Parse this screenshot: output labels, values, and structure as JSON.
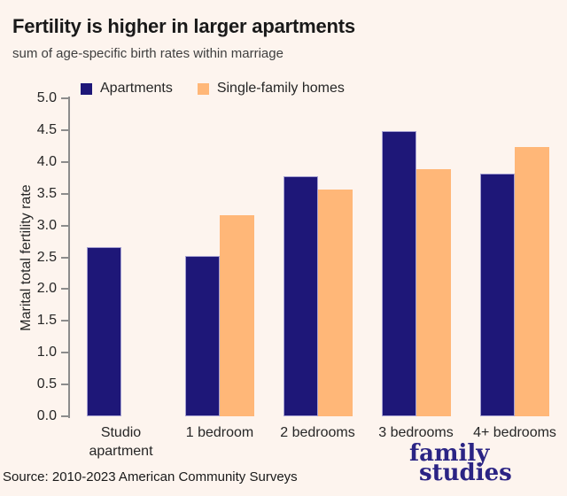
{
  "title": "Fertility is higher in larger apartments",
  "subtitle": "sum of age-specific birth rates within marriage",
  "source": "Source: 2010-2023 American Community Surveys",
  "logo": {
    "line1": "family",
    "line2": "studies"
  },
  "colors": {
    "background": "#fdf4ee",
    "apartments": "#1e1778",
    "single_family": "#ffb778",
    "axis": "#8c8c8c",
    "title_text": "#191919",
    "subtitle_text": "#3f3f3f",
    "tick_text": "#262626",
    "logo_text": "#2b2484"
  },
  "legend": [
    {
      "label": "Apartments",
      "color_key": "apartments"
    },
    {
      "label": "Single-family homes",
      "color_key": "single_family"
    }
  ],
  "chart_data": {
    "type": "bar",
    "title": "Fertility is higher in larger apartments",
    "subtitle": "sum of age-specific birth rates within marriage",
    "categories": [
      "Studio apartment",
      "1 bedroom",
      "2 bedrooms",
      "3 bedrooms",
      "4+ bedrooms"
    ],
    "category_label_lines": [
      [
        "Studio",
        "apartment"
      ],
      [
        "1 bedroom"
      ],
      [
        "2 bedrooms"
      ],
      [
        "3 bedrooms"
      ],
      [
        "4+ bedrooms"
      ]
    ],
    "series": [
      {
        "name": "Apartments",
        "values": [
          2.66,
          2.52,
          3.77,
          4.49,
          3.81
        ]
      },
      {
        "name": "Single-family homes",
        "values": [
          null,
          3.16,
          3.57,
          3.88,
          4.23
        ]
      }
    ],
    "xlabel": "",
    "ylabel": "Marital total fertility rate",
    "ylim": [
      0.0,
      5.0
    ],
    "ytick_step": 0.5,
    "ytick_decimals": 1,
    "grid": false,
    "legend_position": "top-left"
  }
}
